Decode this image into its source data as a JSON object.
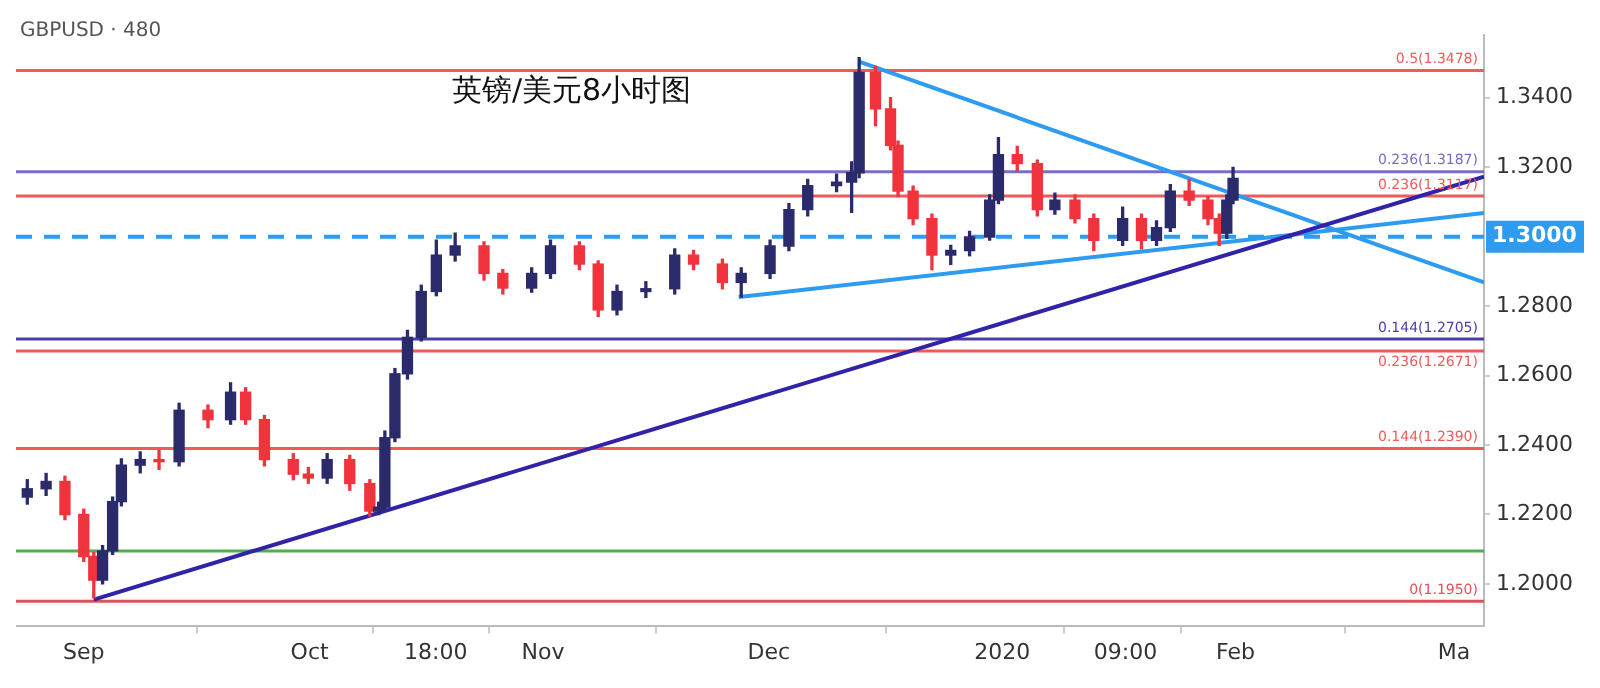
{
  "chart_data": {
    "type": "candlestick",
    "title": "英镑/美元8小时图",
    "annotations": [
      "GBPUSD · 480"
    ],
    "series": [
      {
        "type": "candlestick",
        "x": [
          "2019-08-24T12:00",
          "2019-08-27",
          "2019-08-29T12:00",
          "2019-09-01",
          "2019-09-02T08:00",
          "2019-09-03T12:00",
          "2019-09-04T20:00",
          "2019-09-06",
          "2019-09-08T12:00",
          "2019-09-11",
          "2019-09-13T16:00",
          "2019-09-17T12:00",
          "2019-09-20T12:00",
          "2019-09-22T12:00",
          "2019-09-25",
          "2019-09-28T20:00",
          "2019-09-30T20:00",
          "2019-10-03T08:00",
          "2019-10-06T08:00",
          "2019-10-09",
          "2019-10-10T04:00",
          "2019-10-11",
          "2019-10-12T08:00",
          "2019-10-14",
          "2019-10-15T20:00",
          "2019-10-17T20:00",
          "2019-10-20T08:00",
          "2019-10-24T04:00",
          "2019-10-26T16:00",
          "2019-10-30T12:00",
          "2019-11-02",
          "2019-11-05T20:00",
          "2019-11-08T08:00",
          "2019-11-10T20:00",
          "2019-11-14T16:00",
          "2019-11-18T12:00",
          "2019-11-21",
          "2019-11-24T20:00",
          "2019-11-27T08:00",
          "2019-12-01T04:00",
          "2019-12-03T16:00",
          "2019-12-06T04:00",
          "2019-12-10",
          "2019-12-12",
          "2019-12-13",
          "2019-12-15T04:00",
          "2019-12-17T04:00",
          "2019-12-18T04:00",
          "2019-12-20T04:00",
          "2019-12-22T16:00",
          "2019-12-25T04:00",
          "2019-12-27T16:00",
          "2019-12-30T08:00",
          "2019-12-31T12:00",
          "2020-01-03",
          "2020-01-05T16:00",
          "2020-01-08",
          "2020-01-10T16:00",
          "2020-01-13T04:00",
          "2020-01-17",
          "2020-01-19T12:00",
          "2020-01-21T12:00",
          "2020-01-23T08:00",
          "2020-01-25T20:00",
          "2020-01-28T08:00",
          "2020-01-29T20:00",
          "2020-01-30T20:00",
          "2020-01-31T16:00"
        ],
        "ohlc": [
          [
            1.225,
            1.23,
            1.223,
            1.2274
          ],
          [
            1.2274,
            1.2318,
            1.2255,
            1.2295
          ],
          [
            1.2295,
            1.231,
            1.2185,
            1.22
          ],
          [
            1.22,
            1.2215,
            1.2065,
            1.2079
          ],
          [
            1.2079,
            1.209,
            1.196,
            1.2011
          ],
          [
            1.2011,
            1.211,
            1.2,
            1.2095
          ],
          [
            1.2095,
            1.225,
            1.2085,
            1.2237
          ],
          [
            1.2237,
            1.236,
            1.2225,
            1.2342
          ],
          [
            1.2342,
            1.238,
            1.232,
            1.2358
          ],
          [
            1.2358,
            1.2385,
            1.233,
            1.2352
          ],
          [
            1.2352,
            1.252,
            1.234,
            1.25
          ],
          [
            1.25,
            1.2515,
            1.245,
            1.2473
          ],
          [
            1.2473,
            1.2579,
            1.246,
            1.2552
          ],
          [
            1.2552,
            1.2565,
            1.246,
            1.2473
          ],
          [
            1.2473,
            1.2485,
            1.234,
            1.2358
          ],
          [
            1.2358,
            1.2375,
            1.23,
            1.2316
          ],
          [
            1.2316,
            1.2335,
            1.229,
            1.2305
          ],
          [
            1.2305,
            1.2375,
            1.229,
            1.2358
          ],
          [
            1.2358,
            1.237,
            1.227,
            1.2289
          ],
          [
            1.2289,
            1.23,
            1.2195,
            1.221
          ],
          [
            1.221,
            1.2235,
            1.22,
            1.2221
          ],
          [
            1.2221,
            1.244,
            1.2215,
            1.2421
          ],
          [
            1.2421,
            1.262,
            1.241,
            1.2605
          ],
          [
            1.2605,
            1.273,
            1.259,
            1.271
          ],
          [
            1.271,
            1.286,
            1.27,
            1.2842
          ],
          [
            1.2842,
            1.299,
            1.283,
            1.2947
          ],
          [
            1.2947,
            1.301,
            1.293,
            1.2973
          ],
          [
            1.2973,
            1.2985,
            1.2875,
            1.2894
          ],
          [
            1.2894,
            1.2905,
            1.2835,
            1.2852
          ],
          [
            1.2852,
            1.291,
            1.284,
            1.2894
          ],
          [
            1.2894,
            1.299,
            1.288,
            1.2973
          ],
          [
            1.2973,
            1.2985,
            1.2905,
            1.2921
          ],
          [
            1.2921,
            1.293,
            1.277,
            1.2789
          ],
          [
            1.2789,
            1.286,
            1.2775,
            1.2842
          ],
          [
            1.2842,
            1.287,
            1.2825,
            1.285
          ],
          [
            1.285,
            1.2965,
            1.2835,
            1.2947
          ],
          [
            1.2947,
            1.296,
            1.2905,
            1.2921
          ],
          [
            1.2921,
            1.2935,
            1.285,
            1.2868
          ],
          [
            1.2868,
            1.291,
            1.2826,
            1.2894
          ],
          [
            1.2894,
            1.299,
            1.288,
            1.2973
          ],
          [
            1.2973,
            1.3095,
            1.296,
            1.3078
          ],
          [
            1.3078,
            1.3165,
            1.306,
            1.3147
          ],
          [
            1.3147,
            1.318,
            1.313,
            1.3157
          ],
          [
            1.3157,
            1.3215,
            1.307,
            1.3184
          ],
          [
            1.3184,
            1.3515,
            1.317,
            1.3473
          ],
          [
            1.3473,
            1.349,
            1.332,
            1.3368
          ],
          [
            1.3368,
            1.34,
            1.325,
            1.3263
          ],
          [
            1.3263,
            1.3275,
            1.3115,
            1.3131
          ],
          [
            1.3131,
            1.3145,
            1.3035,
            1.3052
          ],
          [
            1.3052,
            1.3065,
            1.2905,
            1.2947
          ],
          [
            1.2947,
            1.2975,
            1.292,
            1.296
          ],
          [
            1.296,
            1.3015,
            1.2945,
            1.2999
          ],
          [
            1.2999,
            1.312,
            1.299,
            1.3105
          ],
          [
            1.3105,
            1.3285,
            1.3095,
            1.3236
          ],
          [
            1.3236,
            1.326,
            1.319,
            1.321
          ],
          [
            1.321,
            1.322,
            1.306,
            1.3078
          ],
          [
            1.3078,
            1.3125,
            1.3065,
            1.3105
          ],
          [
            1.3105,
            1.312,
            1.304,
            1.3052
          ],
          [
            1.3052,
            1.3065,
            1.296,
            1.2989
          ],
          [
            1.2989,
            1.3085,
            1.2975,
            1.3052
          ],
          [
            1.3052,
            1.3065,
            1.2965,
            1.2989
          ],
          [
            1.2989,
            1.3045,
            1.2975,
            1.3026
          ],
          [
            1.3026,
            1.315,
            1.3015,
            1.3131
          ],
          [
            1.3131,
            1.3165,
            1.309,
            1.3105
          ],
          [
            1.3105,
            1.3115,
            1.3035,
            1.3052
          ],
          [
            1.3052,
            1.3065,
            1.2975,
            1.301
          ],
          [
            1.301,
            1.312,
            1.2995,
            1.3105
          ],
          [
            1.3105,
            1.3199,
            1.3095,
            1.3168
          ]
        ],
        "colors": [
          "#2b2a6b",
          "#2b2a6b",
          "#f0333c",
          "#f0333c",
          "#f0333c",
          "#2b2a6b",
          "#2b2a6b",
          "#2b2a6b",
          "#2b2a6b",
          "#f0333c",
          "#2b2a6b",
          "#f0333c",
          "#2b2a6b",
          "#f0333c",
          "#f0333c",
          "#f0333c",
          "#f0333c",
          "#2b2a6b",
          "#f0333c",
          "#f0333c",
          "#2b2a6b",
          "#2b2a6b",
          "#2b2a6b",
          "#2b2a6b",
          "#2b2a6b",
          "#2b2a6b",
          "#2b2a6b",
          "#f0333c",
          "#f0333c",
          "#2b2a6b",
          "#2b2a6b",
          "#f0333c",
          "#f0333c",
          "#2b2a6b",
          "#2b2a6b",
          "#2b2a6b",
          "#f0333c",
          "#f0333c",
          "#2b2a6b",
          "#2b2a6b",
          "#2b2a6b",
          "#2b2a6b",
          "#2b2a6b",
          "#2b2a6b",
          "#2b2a6b",
          "#f0333c",
          "#f0333c",
          "#f0333c",
          "#f0333c",
          "#f0333c",
          "#2b2a6b",
          "#2b2a6b",
          "#2b2a6b",
          "#2b2a6b",
          "#f0333c",
          "#f0333c",
          "#2b2a6b",
          "#f0333c",
          "#f0333c",
          "#2b2a6b",
          "#f0333c",
          "#2b2a6b",
          "#2b2a6b",
          "#f0333c",
          "#f0333c",
          "#f0333c",
          "#2b2a6b",
          "#2b2a6b"
        ]
      },
      {
        "type": "line",
        "color": "#3123a8",
        "x": [
          "2019-09-02T08:00",
          "2020-03-05"
        ],
        "values": [
          1.1955,
          1.3173
        ]
      },
      {
        "type": "line",
        "color": "#2d9bf0",
        "x": [
          "2019-12-13",
          "2020-03-05"
        ],
        "values": [
          1.3504,
          1.2868
        ]
      },
      {
        "type": "line",
        "color": "#2d9bf0",
        "x": [
          "2019-11-27",
          "2020-03-05"
        ],
        "values": [
          1.2826,
          1.3068
        ]
      }
    ],
    "xlim": [
      "2019-08-23",
      "2020-03-05"
    ],
    "xticks": [
      {
        "value": "2019-09-01",
        "label": "Sep"
      },
      {
        "value": "2019-10-01",
        "label": "Oct"
      },
      {
        "value": "2019-10-17T18:00",
        "label": "18:00"
      },
      {
        "value": "2019-11-01",
        "label": "Nov"
      },
      {
        "value": "2019-12-01",
        "label": "Dec"
      },
      {
        "value": "2020-01-01",
        "label": "2020"
      },
      {
        "value": "2020-01-17T09:00",
        "label": "09:00"
      },
      {
        "value": "2020-02-01",
        "label": "Feb"
      },
      {
        "value": "2020-03-01",
        "label": "Ma"
      }
    ],
    "ylim": [
      1.188,
      1.358
    ],
    "yticks": [
      {
        "value": 1.2,
        "label": "1.2000"
      },
      {
        "value": 1.22,
        "label": "1.2200"
      },
      {
        "value": 1.24,
        "label": "1.2400"
      },
      {
        "value": 1.26,
        "label": "1.2600"
      },
      {
        "value": 1.28,
        "label": "1.2800"
      },
      {
        "value": 1.32,
        "label": "1.3200"
      },
      {
        "value": 1.34,
        "label": "1.3400"
      }
    ],
    "ref_lines": [
      {
        "axis": "y",
        "value": 1.3478,
        "label": "0.5(1.3478)",
        "color": "#f05a5a"
      },
      {
        "axis": "y",
        "value": 1.3187,
        "label": "0.236(1.3187)",
        "color": "#7b6cc4"
      },
      {
        "axis": "y",
        "value": 1.3117,
        "label": "0.236(1.3117)",
        "color": "#f05a5a"
      },
      {
        "axis": "y",
        "value": 1.3,
        "label": "1.3000",
        "color": "#2d9bf0",
        "line_style": "dashed"
      },
      {
        "axis": "y",
        "value": 1.2705,
        "label": "0.144(1.2705)",
        "color": "#4a3fa8"
      },
      {
        "axis": "y",
        "value": 1.2671,
        "label": "0.236(1.2671)",
        "color": "#f05a5a"
      },
      {
        "axis": "y",
        "value": 1.239,
        "label": "0.144(1.2390)",
        "color": "#f05a5a"
      },
      {
        "axis": "y",
        "value": 1.2095,
        "color": "#4caf50"
      },
      {
        "axis": "y",
        "value": 1.195,
        "label": "0(1.1950)",
        "color": "#e0505a"
      }
    ],
    "grid": false,
    "legend": false
  }
}
